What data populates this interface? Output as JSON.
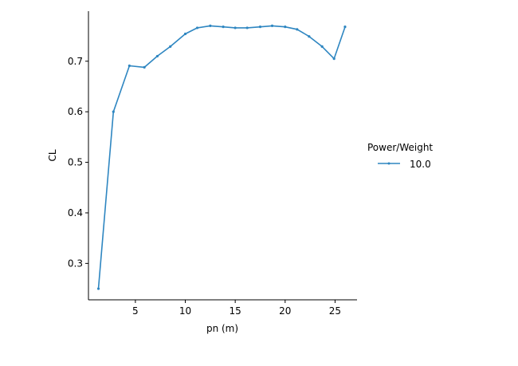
{
  "chart_data": {
    "type": "line",
    "xlabel": "pn (m)",
    "ylabel": "CL",
    "xlim": [
      0.3,
      27.2
    ],
    "ylim": [
      0.228,
      0.799
    ],
    "xticks": [
      5,
      10,
      15,
      20,
      25
    ],
    "yticks": [
      0.3,
      0.4,
      0.5,
      0.6,
      0.7
    ],
    "grid": false,
    "legend": {
      "title": "Power/Weight",
      "placement": "right"
    },
    "series": [
      {
        "name": "10.0",
        "color": "#2e86c1",
        "x": [
          1.3,
          2.8,
          4.4,
          5.9,
          7.2,
          8.5,
          10.0,
          11.2,
          12.5,
          13.8,
          15.0,
          16.2,
          17.5,
          18.7,
          20.0,
          21.2,
          22.4,
          23.7,
          24.9,
          26.0
        ],
        "y": [
          0.25,
          0.6,
          0.691,
          0.688,
          0.71,
          0.729,
          0.754,
          0.766,
          0.77,
          0.768,
          0.766,
          0.766,
          0.768,
          0.77,
          0.768,
          0.763,
          0.749,
          0.729,
          0.705,
          0.768
        ]
      }
    ]
  }
}
